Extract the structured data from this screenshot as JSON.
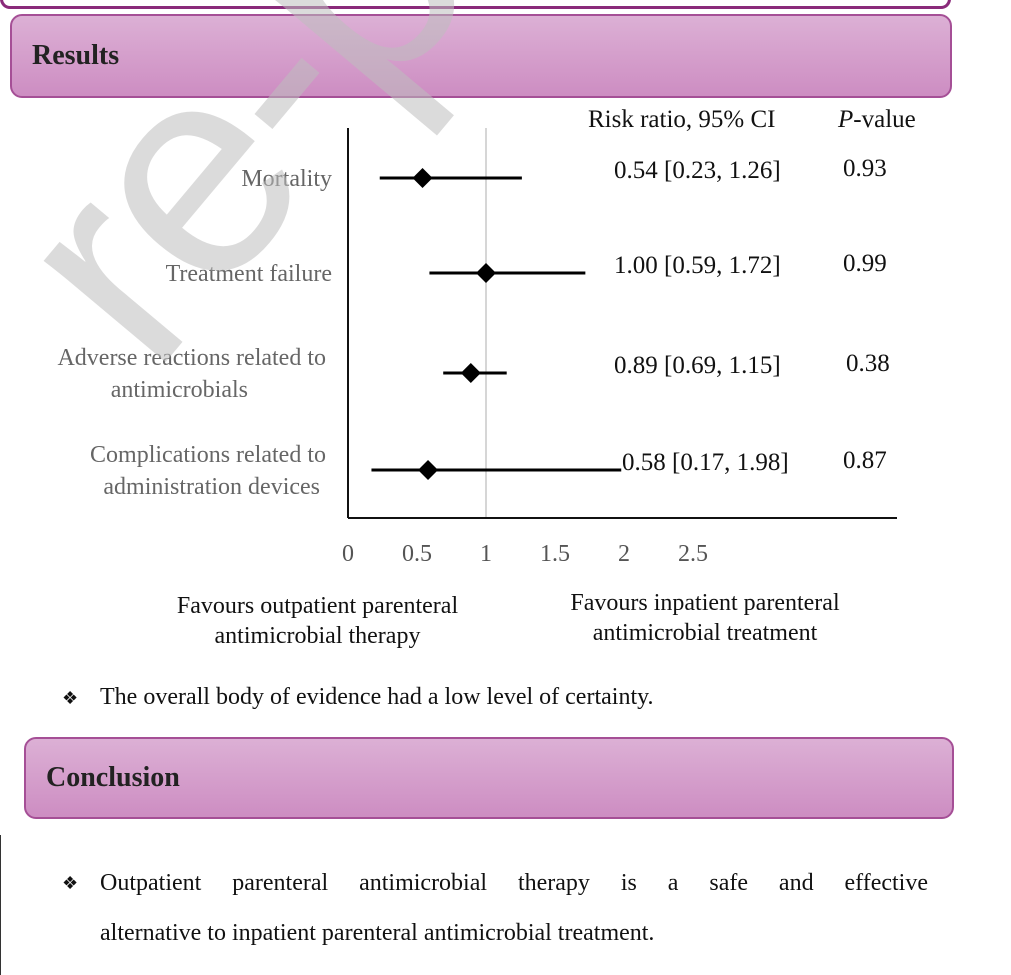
{
  "watermark": "re-proof",
  "results_header": "Results",
  "conclusion_header": "Conclusion",
  "columns": {
    "risk_ratio_label": "Risk ratio, 95% CI",
    "pvalue_italic": "P",
    "pvalue_rest": "-value"
  },
  "favours": {
    "left": "Favours outpatient parenteral antimicrobial therapy",
    "right": "Favours inpatient parenteral antimicrobial treatment"
  },
  "results_bullet": "The overall body of evidence had a low level of certainty.",
  "conclusion_bullet": {
    "line1": "Outpatient parenteral antimicrobial therapy is a safe and effective",
    "line2": "alternative to inpatient parenteral antimicrobial treatment."
  },
  "colors": {
    "header_fill": "#cd8dc2",
    "header_border": "#a54f96"
  },
  "chart_data": {
    "type": "forest",
    "xlabel": "",
    "xlim": [
      0,
      2.5
    ],
    "xticks": [
      "0",
      "0.5",
      "1",
      "1.5",
      "2",
      "2.5"
    ],
    "reference_line": 1,
    "rows": [
      {
        "label": [
          "Mortality"
        ],
        "rr": 0.54,
        "lo": 0.23,
        "hi": 1.26,
        "ci_text": "0.54 [0.23, 1.26]",
        "p": "0.93"
      },
      {
        "label": [
          "Treatment failure"
        ],
        "rr": 1.0,
        "lo": 0.59,
        "hi": 1.72,
        "ci_text": "1.00 [0.59, 1.72]",
        "p": "0.99"
      },
      {
        "label": [
          "Adverse reactions related to",
          "antimicrobials"
        ],
        "rr": 0.89,
        "lo": 0.69,
        "hi": 1.15,
        "ci_text": "0.89 [0.69, 1.15]",
        "p": "0.38"
      },
      {
        "label": [
          "Complications related to",
          "administration devices"
        ],
        "rr": 0.58,
        "lo": 0.17,
        "hi": 1.98,
        "ci_text": "0.58 [0.17, 1.98]",
        "p": "0.87"
      }
    ]
  }
}
